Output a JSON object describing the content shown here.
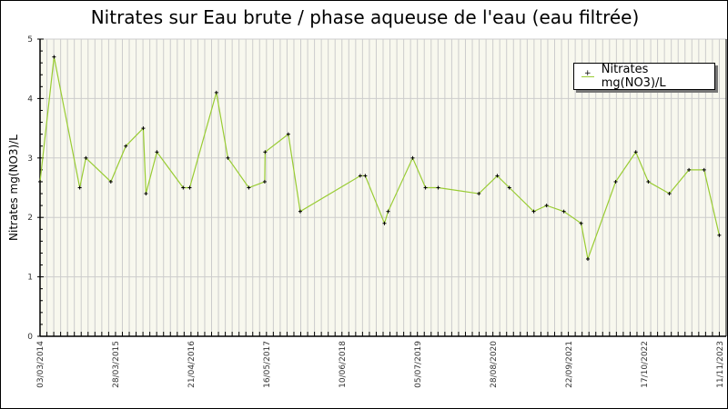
{
  "chart_data": {
    "type": "line",
    "title": "Nitrates sur Eau brute / phase aqueuse de l'eau (eau filtrée)",
    "xlabel": "",
    "ylabel": "Nitrates mg(NO3)/L",
    "ylim": [
      0,
      5
    ],
    "xlim": [
      "2014-03-03",
      "2023-12-17"
    ],
    "yticks": [
      "0",
      "1",
      "2",
      "3",
      "4",
      "5"
    ],
    "xticks": [
      "03/03/2014",
      "28/03/2015",
      "21/04/2016",
      "16/05/2017",
      "10/06/2018",
      "05/07/2019",
      "28/08/2020",
      "22/09/2021",
      "17/10/2022",
      "11/11/2023"
    ],
    "grid": true,
    "legend_position": "top-right",
    "line_color": "#99cc33",
    "background_color": "#f8f8ee",
    "series": [
      {
        "name": "Nitrates mg(NO3)/L",
        "points": [
          [
            "2014-03-03",
            2.6
          ],
          [
            "2014-05-15",
            4.7
          ],
          [
            "2014-09-26",
            2.5
          ],
          [
            "2014-10-28",
            3.0
          ],
          [
            "2015-03-07",
            2.6
          ],
          [
            "2015-05-24",
            3.2
          ],
          [
            "2015-08-23",
            3.5
          ],
          [
            "2015-09-06",
            2.4
          ],
          [
            "2015-11-02",
            3.1
          ],
          [
            "2016-03-18",
            2.5
          ],
          [
            "2016-04-21",
            2.5
          ],
          [
            "2016-09-07",
            4.1
          ],
          [
            "2016-11-06",
            3.0
          ],
          [
            "2017-02-23",
            2.5
          ],
          [
            "2017-05-17",
            2.6
          ],
          [
            "2017-05-19",
            3.1
          ],
          [
            "2017-09-17",
            3.4
          ],
          [
            "2017-11-18",
            2.1
          ],
          [
            "2018-09-27",
            2.7
          ],
          [
            "2018-10-23",
            2.7
          ],
          [
            "2019-01-31",
            1.9
          ],
          [
            "2019-02-19",
            2.1
          ],
          [
            "2019-06-27",
            3.0
          ],
          [
            "2019-09-02",
            2.5
          ],
          [
            "2019-11-07",
            2.5
          ],
          [
            "2020-06-06",
            2.4
          ],
          [
            "2020-09-10",
            2.7
          ],
          [
            "2020-11-12",
            2.5
          ],
          [
            "2021-03-19",
            2.1
          ],
          [
            "2021-05-25",
            2.2
          ],
          [
            "2021-08-23",
            2.1
          ],
          [
            "2021-11-21",
            1.9
          ],
          [
            "2021-12-26",
            1.3
          ],
          [
            "2022-05-20",
            2.6
          ],
          [
            "2022-09-02",
            3.1
          ],
          [
            "2022-11-06",
            2.6
          ],
          [
            "2023-02-24",
            2.4
          ],
          [
            "2023-06-06",
            2.8
          ],
          [
            "2023-08-24",
            2.8
          ],
          [
            "2023-11-11",
            1.7
          ]
        ]
      }
    ]
  }
}
